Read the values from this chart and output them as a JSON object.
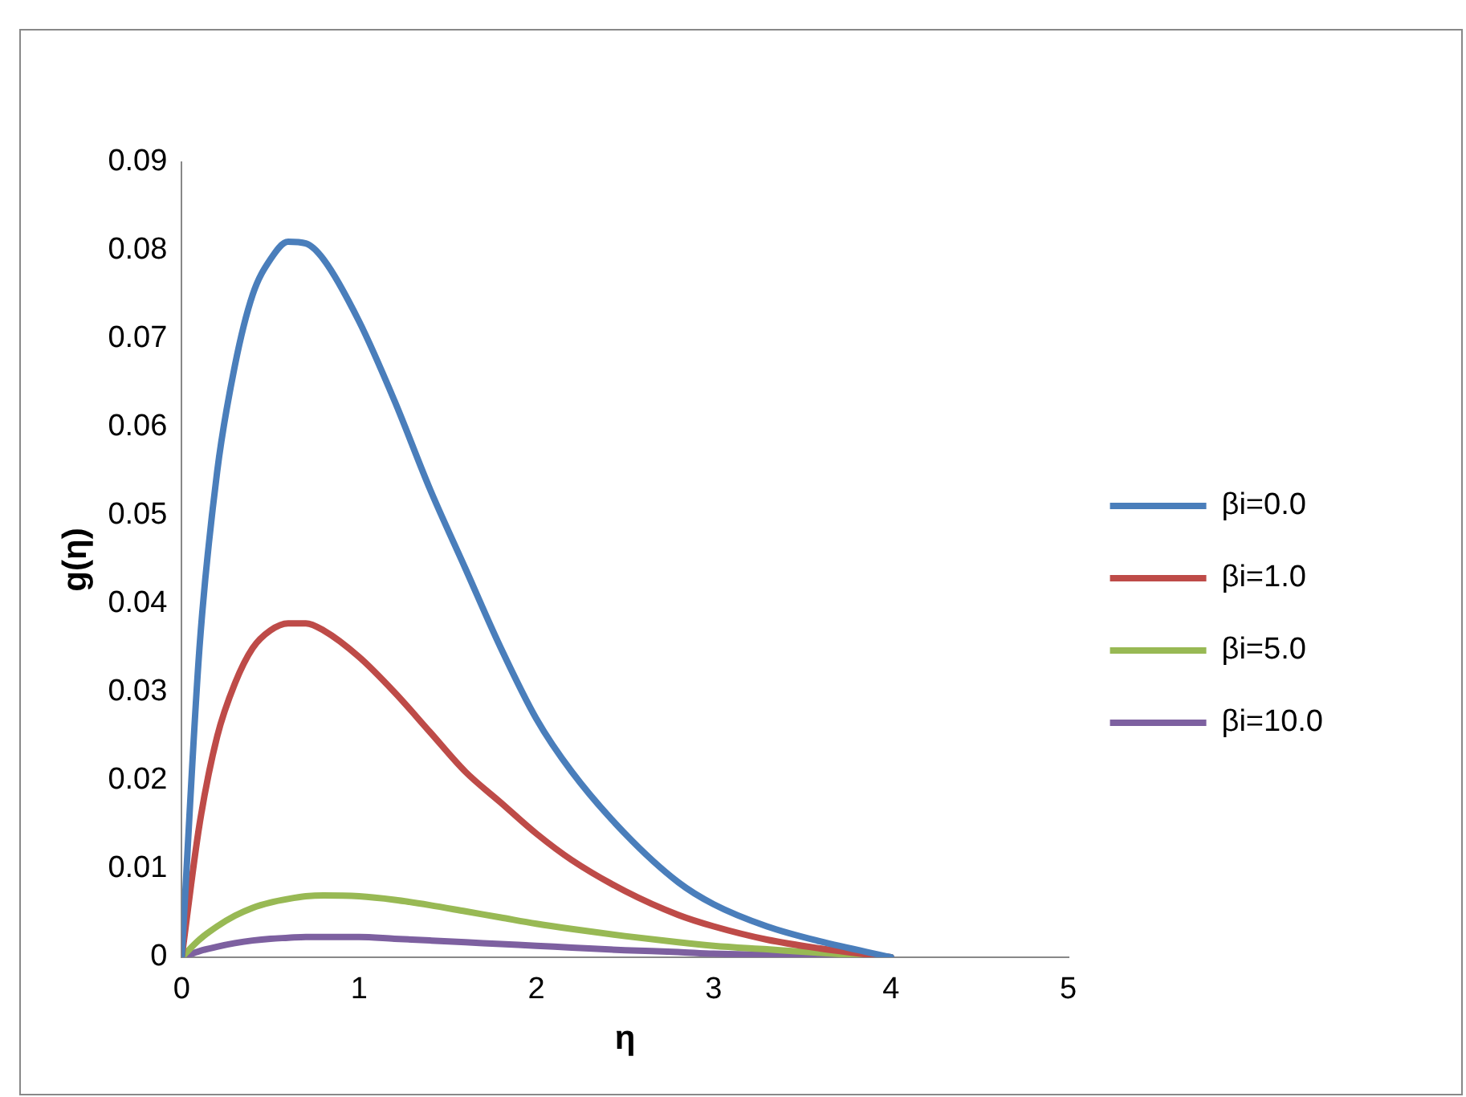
{
  "chart_data": {
    "type": "line",
    "xlabel": "η",
    "ylabel": "g(η)",
    "x": [
      0,
      0.1,
      0.2,
      0.3,
      0.4,
      0.5,
      0.6,
      0.7,
      0.8,
      1.0,
      1.2,
      1.4,
      1.6,
      1.8,
      2.0,
      2.2,
      2.5,
      2.8,
      3.0,
      3.3,
      3.6,
      4.0
    ],
    "series": [
      {
        "name": "βi=0.0",
        "color": "#4a7ebb",
        "values": [
          0,
          0.035,
          0.055,
          0.067,
          0.075,
          0.079,
          0.081,
          0.0808,
          0.079,
          0.072,
          0.063,
          0.053,
          0.044,
          0.035,
          0.027,
          0.021,
          0.014,
          0.0085,
          0.006,
          0.0035,
          0.0018,
          0
        ]
      },
      {
        "name": "βi=1.0",
        "color": "#be4b48",
        "values": [
          0,
          0.015,
          0.025,
          0.031,
          0.035,
          0.037,
          0.0378,
          0.0378,
          0.037,
          0.034,
          0.03,
          0.0255,
          0.021,
          0.0175,
          0.014,
          0.011,
          0.0075,
          0.0048,
          0.0035,
          0.002,
          0.001,
          0
        ]
      },
      {
        "name": "βi=5.0",
        "color": "#98b954",
        "values": [
          0,
          0.002,
          0.0035,
          0.0047,
          0.0056,
          0.0062,
          0.0066,
          0.0069,
          0.007,
          0.0069,
          0.0065,
          0.0059,
          0.0052,
          0.0045,
          0.0038,
          0.0032,
          0.0024,
          0.0017,
          0.0013,
          0.0009,
          0.0005,
          0
        ]
      },
      {
        "name": "βi=10.0",
        "color": "#7d60a0",
        "values": [
          0,
          0.0007,
          0.0012,
          0.0016,
          0.0019,
          0.0021,
          0.0022,
          0.0023,
          0.0023,
          0.0023,
          0.0021,
          0.0019,
          0.0017,
          0.0015,
          0.0013,
          0.0011,
          0.0008,
          0.0006,
          0.0004,
          0.0003,
          0.0002,
          0
        ]
      }
    ],
    "xlim": [
      0,
      5
    ],
    "xticks": [
      0,
      1,
      2,
      3,
      4,
      5
    ],
    "ylim": [
      0,
      0.09
    ],
    "yticks": [
      0,
      0.01,
      0.02,
      0.03,
      0.04,
      0.05,
      0.06,
      0.07,
      0.08,
      0.09
    ],
    "grid": false,
    "legend": "right",
    "marker": "none",
    "line_style": "solid"
  }
}
